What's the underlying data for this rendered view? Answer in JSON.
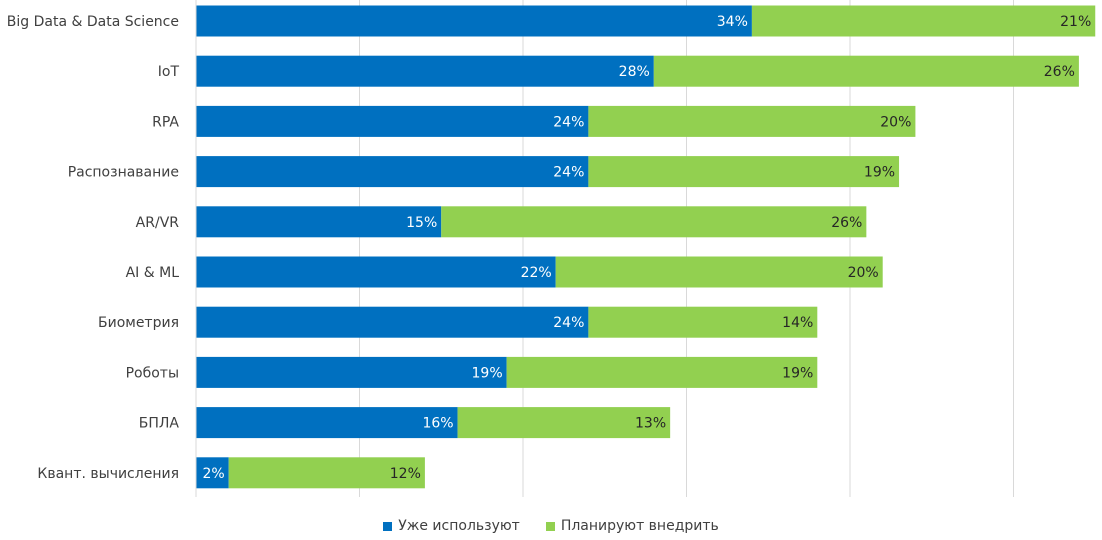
{
  "chart_data": {
    "type": "bar",
    "orientation": "horizontal",
    "stacked": true,
    "categories": [
      "Big Data & Data Science",
      "IoT",
      "RPA",
      "Распознавание",
      "AR/VR",
      "AI & ML",
      "Биометрия",
      "Роботы",
      "БПЛА",
      "Квант. вычисления"
    ],
    "series": [
      {
        "name": "Уже используют",
        "color": "#0070C0",
        "values": [
          34,
          28,
          24,
          24,
          15,
          22,
          24,
          19,
          16,
          2
        ],
        "labels": [
          "34%",
          "28%",
          "24%",
          "24%",
          "15%",
          "22%",
          "24%",
          "19%",
          "16%",
          "2%"
        ]
      },
      {
        "name": "Планируют внедрить",
        "color": "#92D050",
        "values": [
          21,
          26,
          20,
          19,
          26,
          20,
          14,
          19,
          13,
          12
        ],
        "labels": [
          "21%",
          "26%",
          "20%",
          "19%",
          "26%",
          "20%",
          "14%",
          "19%",
          "13%",
          "12%"
        ]
      }
    ],
    "xlim": [
      0,
      55
    ],
    "grid": true,
    "legend_position": "bottom"
  },
  "legend": {
    "used_label": "Уже используют",
    "planned_label": "Планируют внедрить"
  }
}
